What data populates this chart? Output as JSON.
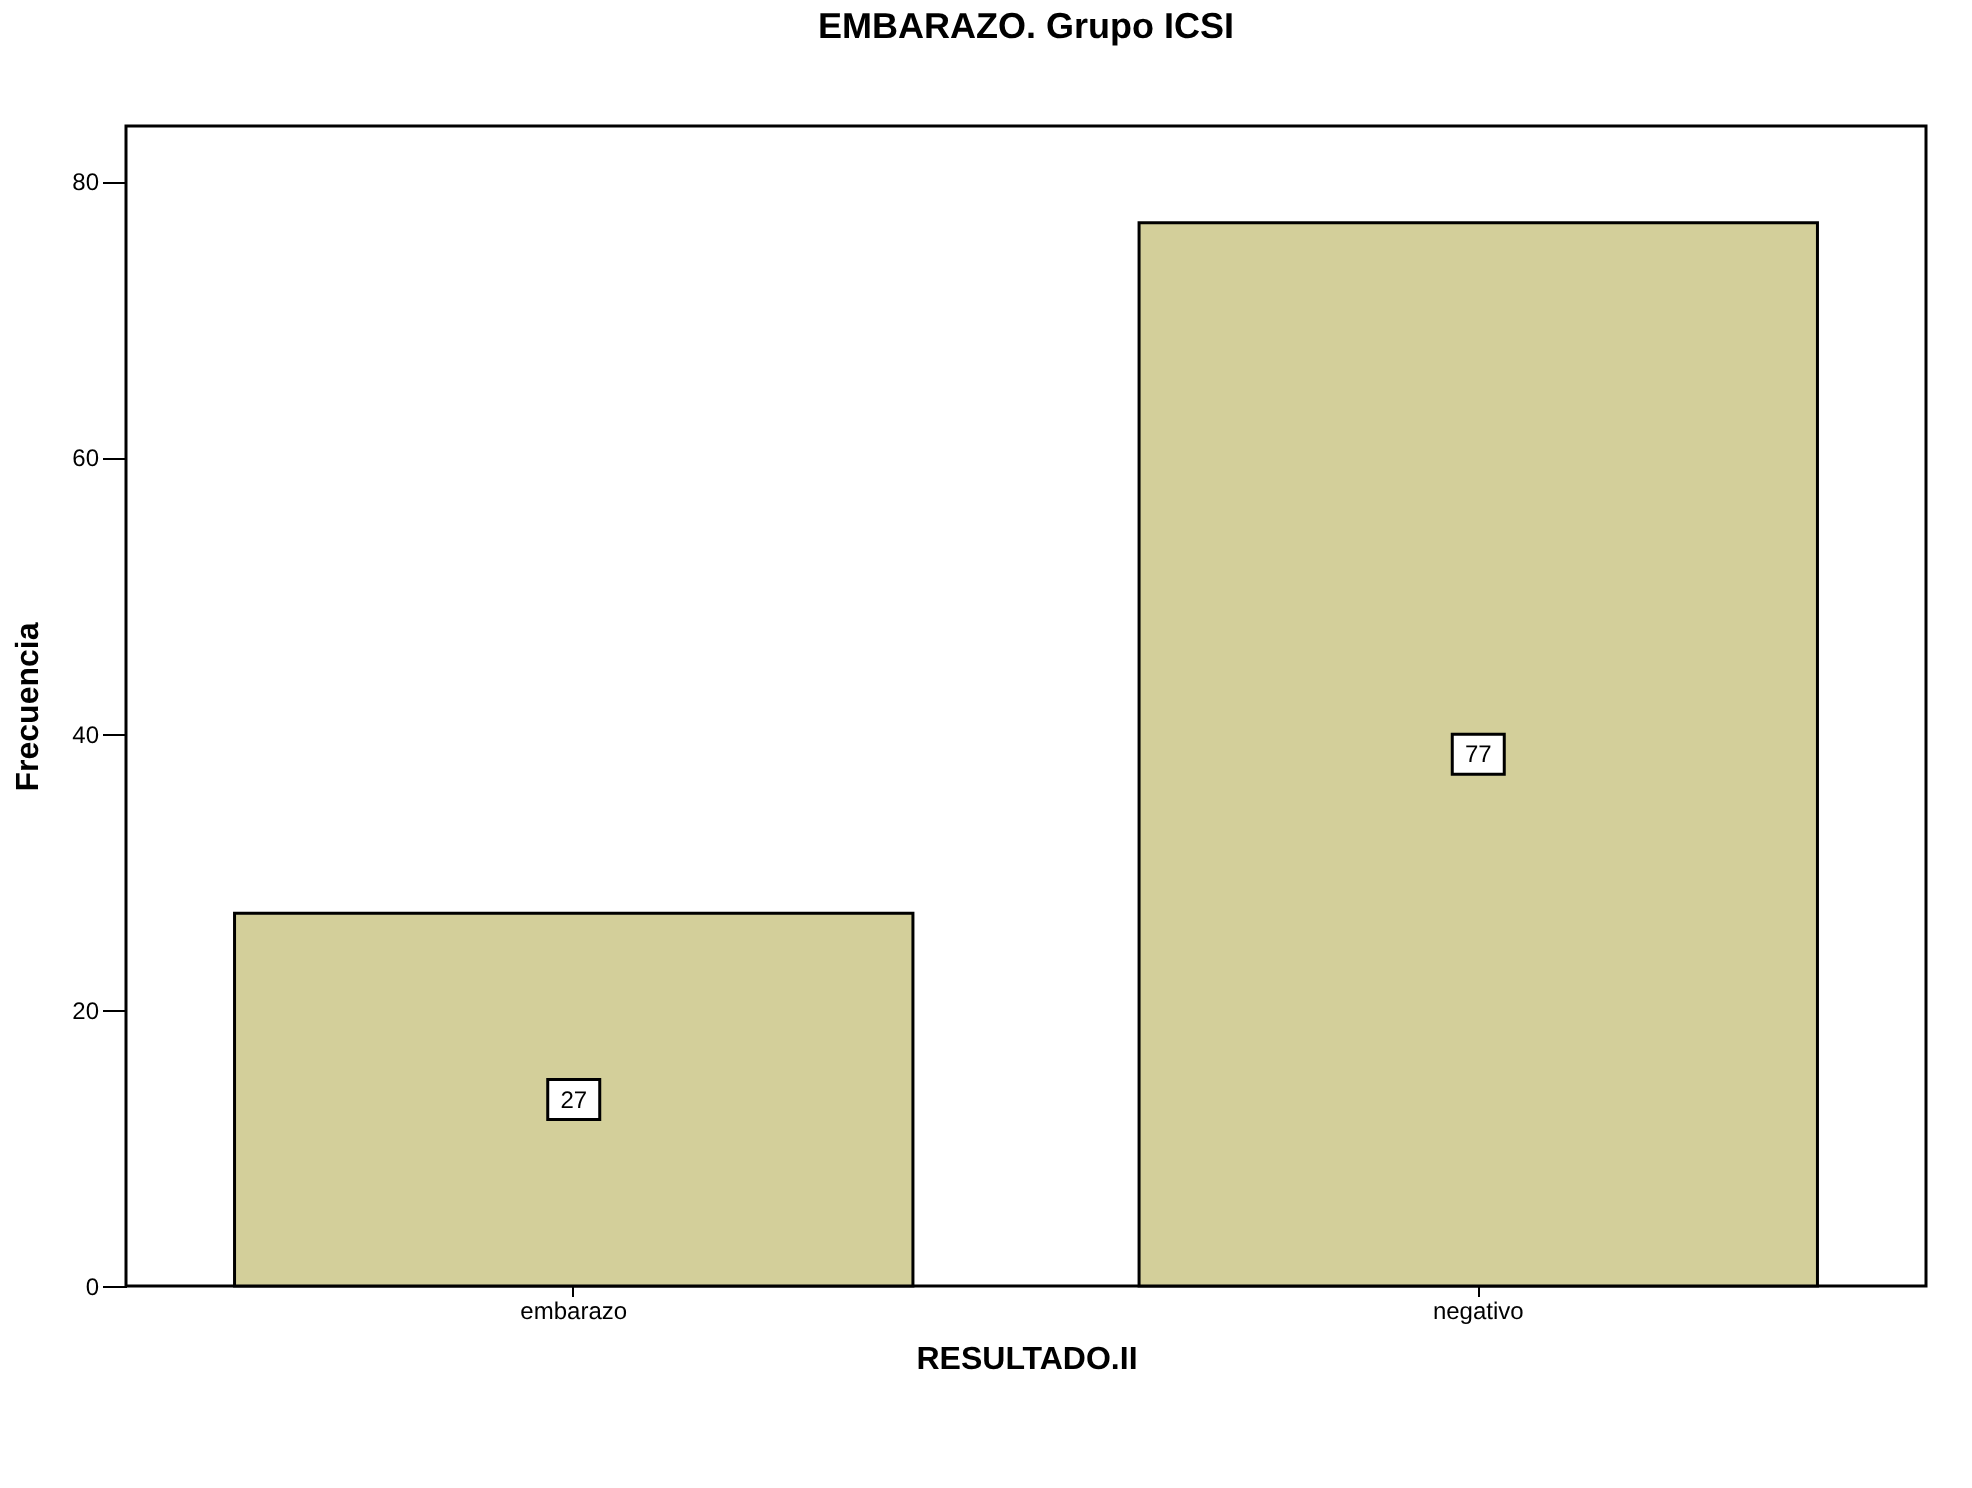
{
  "chart_data": {
    "type": "bar",
    "title": "EMBARAZO. Grupo ICSI",
    "xlabel": "RESULTADO.II",
    "ylabel": "Frecuencia",
    "categories": [
      "embarazo",
      "negativo"
    ],
    "values": [
      27,
      77
    ],
    "color": "#d3cf9a",
    "ylim": [
      0,
      84
    ],
    "yticks": [
      0,
      20,
      40,
      60,
      80
    ],
    "grid": false,
    "data_labels": true
  }
}
